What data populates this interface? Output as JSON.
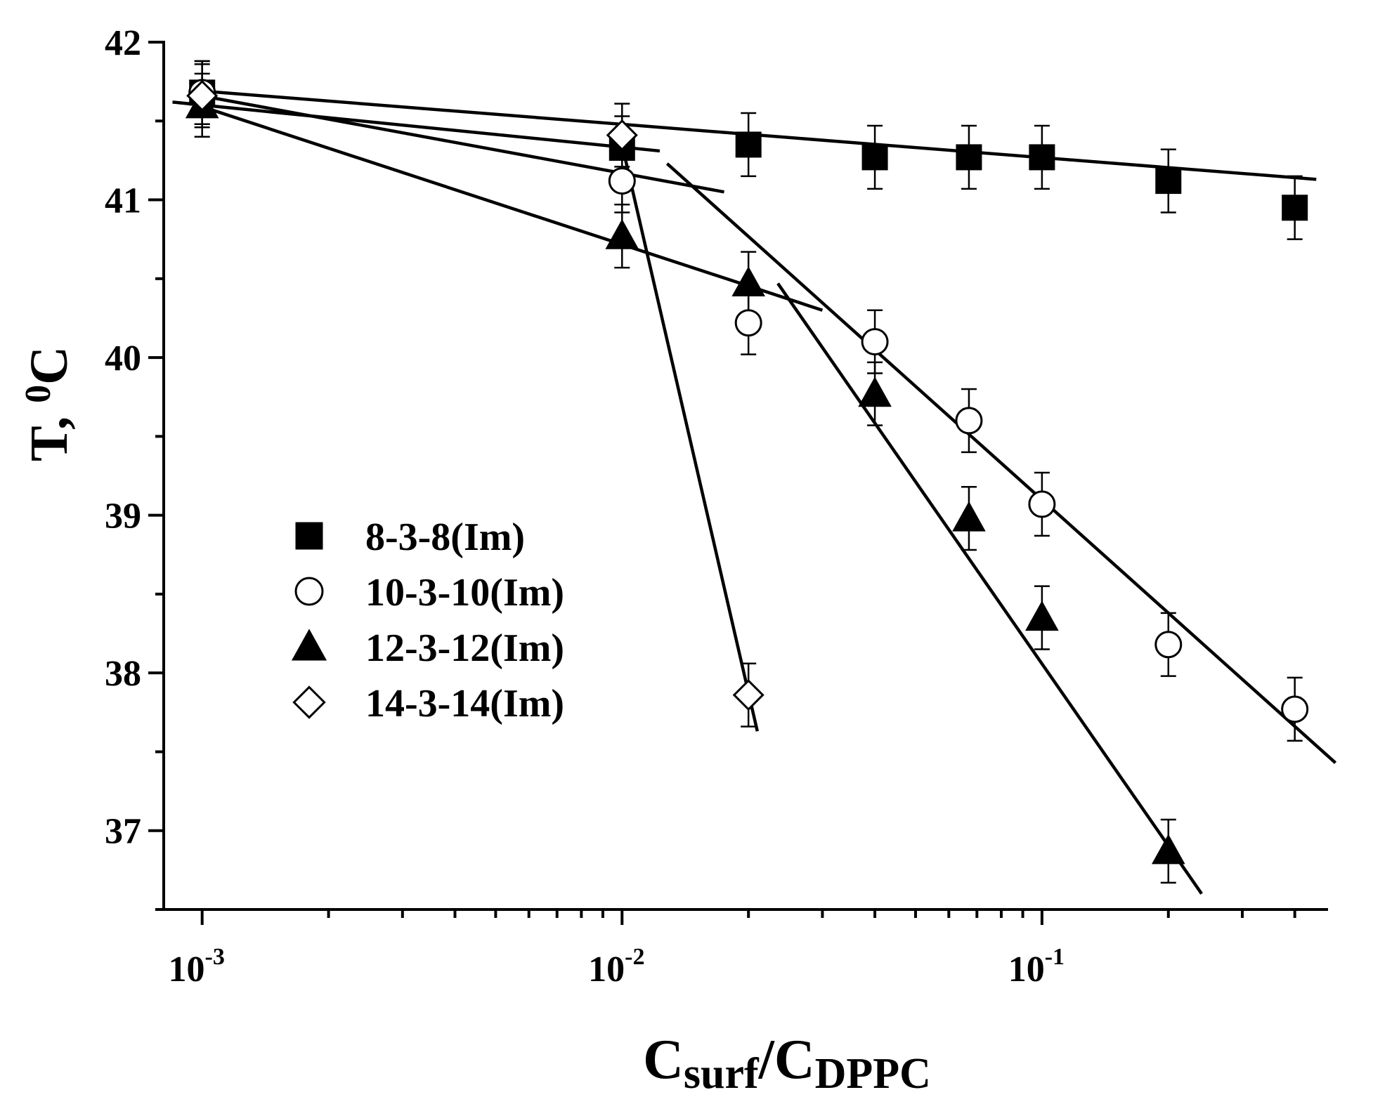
{
  "chart_data": {
    "type": "scatter",
    "x_scale": "log",
    "xlim": [
      0.00081,
      0.48
    ],
    "ylim": [
      36.5,
      42.0
    ],
    "xlabel": {
      "main": "C",
      "sub1": "surf",
      "slash": "/C",
      "sub2": "DPPC"
    },
    "ylabel": {
      "main": "T, ",
      "sup": "0",
      "unit": "C"
    },
    "y_ticks": [
      {
        "value": 37,
        "label": "37"
      },
      {
        "value": 38,
        "label": "38"
      },
      {
        "value": 39,
        "label": "39"
      },
      {
        "value": 40,
        "label": "40"
      },
      {
        "value": 41,
        "label": "41"
      },
      {
        "value": 42,
        "label": "42"
      }
    ],
    "y_minor_ticks": [
      36.5,
      37.5,
      38.5,
      39.5,
      40.5,
      41.5
    ],
    "x_ticks": [
      {
        "value": 0.001,
        "base": "10",
        "exp": "-3"
      },
      {
        "value": 0.01,
        "base": "10",
        "exp": "-2"
      },
      {
        "value": 0.1,
        "base": "10",
        "exp": "-1"
      }
    ],
    "x_minor_ticks": [
      0.002,
      0.003,
      0.004,
      0.005,
      0.006,
      0.007,
      0.008,
      0.009,
      0.02,
      0.03,
      0.04,
      0.05,
      0.06,
      0.07,
      0.08,
      0.09,
      0.2,
      0.3,
      0.4
    ],
    "legend_position": "center-left",
    "series": [
      {
        "name": "8-3-8(Im)",
        "marker": "square",
        "filled": true,
        "points": [
          {
            "x": 0.001,
            "y": 41.68,
            "err": 0.2
          },
          {
            "x": 0.01,
            "y": 41.33,
            "err": 0.2
          },
          {
            "x": 0.02,
            "y": 41.35,
            "err": 0.2
          },
          {
            "x": 0.04,
            "y": 41.27,
            "err": 0.2
          },
          {
            "x": 0.067,
            "y": 41.27,
            "err": 0.2
          },
          {
            "x": 0.1,
            "y": 41.27,
            "err": 0.2
          },
          {
            "x": 0.2,
            "y": 41.12,
            "err": 0.2
          },
          {
            "x": 0.4,
            "y": 40.95,
            "err": 0.2
          }
        ],
        "fit_lines": [
          {
            "x1": 0.001,
            "y1": 41.69,
            "x2": 0.45,
            "y2": 41.13
          }
        ]
      },
      {
        "name": "10-3-10(Im)",
        "marker": "circle",
        "filled": false,
        "points": [
          {
            "x": 0.001,
            "y": 41.68,
            "err": 0.2
          },
          {
            "x": 0.01,
            "y": 41.12,
            "err": 0.2
          },
          {
            "x": 0.02,
            "y": 40.22,
            "err": 0.2
          },
          {
            "x": 0.04,
            "y": 40.1,
            "err": 0.2
          },
          {
            "x": 0.067,
            "y": 39.6,
            "err": 0.2
          },
          {
            "x": 0.1,
            "y": 39.07,
            "err": 0.2
          },
          {
            "x": 0.2,
            "y": 38.18,
            "err": 0.2
          },
          {
            "x": 0.4,
            "y": 37.77,
            "err": 0.2
          }
        ],
        "fit_lines": [
          {
            "x1": 0.00095,
            "y1": 41.67,
            "x2": 0.0175,
            "y2": 41.05
          },
          {
            "x1": 0.0128,
            "y1": 41.23,
            "x2": 0.5,
            "y2": 37.43
          }
        ]
      },
      {
        "name": "12-3-12(Im)",
        "marker": "triangle",
        "filled": true,
        "points": [
          {
            "x": 0.001,
            "y": 41.6,
            "err": 0.2
          },
          {
            "x": 0.01,
            "y": 40.77,
            "err": 0.2
          },
          {
            "x": 0.02,
            "y": 40.47,
            "err": 0.2
          },
          {
            "x": 0.04,
            "y": 39.77,
            "err": 0.2
          },
          {
            "x": 0.067,
            "y": 38.98,
            "err": 0.2
          },
          {
            "x": 0.1,
            "y": 38.35,
            "err": 0.2
          },
          {
            "x": 0.2,
            "y": 36.87,
            "err": 0.2
          }
        ],
        "fit_lines": [
          {
            "x1": 0.00095,
            "y1": 41.61,
            "x2": 0.03,
            "y2": 40.3
          },
          {
            "x1": 0.0235,
            "y1": 40.47,
            "x2": 0.24,
            "y2": 36.6
          }
        ]
      },
      {
        "name": "14-3-14(Im)",
        "marker": "diamond",
        "filled": false,
        "points": [
          {
            "x": 0.001,
            "y": 41.66,
            "err": 0.2
          },
          {
            "x": 0.01,
            "y": 41.41,
            "err": 0.2
          },
          {
            "x": 0.02,
            "y": 37.86,
            "err": 0.2
          }
        ],
        "fit_lines": [
          {
            "x1": 0.00085,
            "y1": 41.62,
            "x2": 0.0123,
            "y2": 41.31
          },
          {
            "x1": 0.0098,
            "y1": 41.45,
            "x2": 0.021,
            "y2": 37.63
          }
        ]
      }
    ]
  }
}
